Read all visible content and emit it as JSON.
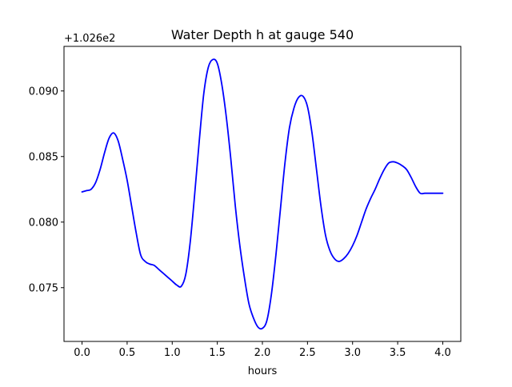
{
  "chart_data": {
    "type": "line",
    "title": "Water Depth h at gauge 540",
    "xlabel": "hours",
    "ylabel": "",
    "offset_label": "+1.026e2",
    "y_offset": 102.6,
    "xlim": [
      -0.2,
      4.2
    ],
    "ylim": [
      0.0709,
      0.0934
    ],
    "grid": false,
    "x_ticks": [
      0.0,
      0.5,
      1.0,
      1.5,
      2.0,
      2.5,
      3.0,
      3.5,
      4.0
    ],
    "x_tick_labels": [
      "0.0",
      "0.5",
      "1.0",
      "1.5",
      "2.0",
      "2.5",
      "3.0",
      "3.5",
      "4.0"
    ],
    "y_ticks": [
      0.075,
      0.08,
      0.085,
      0.09
    ],
    "y_tick_labels": [
      "0.075",
      "0.080",
      "0.085",
      "0.090"
    ],
    "series": [
      {
        "color": "#0000ff",
        "x": [
          0.0,
          0.05,
          0.1,
          0.15,
          0.2,
          0.25,
          0.3,
          0.35,
          0.4,
          0.45,
          0.5,
          0.55,
          0.6,
          0.65,
          0.7,
          0.75,
          0.8,
          0.85,
          0.9,
          0.95,
          1.0,
          1.05,
          1.1,
          1.15,
          1.2,
          1.25,
          1.3,
          1.35,
          1.4,
          1.45,
          1.5,
          1.55,
          1.6,
          1.65,
          1.7,
          1.75,
          1.8,
          1.85,
          1.9,
          1.95,
          2.0,
          2.05,
          2.1,
          2.15,
          2.2,
          2.25,
          2.3,
          2.35,
          2.4,
          2.45,
          2.5,
          2.55,
          2.6,
          2.65,
          2.7,
          2.75,
          2.8,
          2.85,
          2.9,
          2.95,
          3.0,
          3.05,
          3.1,
          3.15,
          3.2,
          3.25,
          3.3,
          3.35,
          3.4,
          3.45,
          3.5,
          3.55,
          3.6,
          3.65,
          3.7,
          3.75,
          3.8,
          3.85,
          3.9,
          3.95,
          4.0
        ],
        "y": [
          0.0823,
          0.0824,
          0.0825,
          0.083,
          0.084,
          0.0853,
          0.0864,
          0.0868,
          0.0862,
          0.0848,
          0.0832,
          0.0812,
          0.0792,
          0.0775,
          0.077,
          0.0768,
          0.0767,
          0.0764,
          0.0761,
          0.0758,
          0.0755,
          0.0752,
          0.0751,
          0.076,
          0.0785,
          0.0822,
          0.0862,
          0.0898,
          0.0918,
          0.0924,
          0.0921,
          0.0905,
          0.088,
          0.0848,
          0.0812,
          0.0782,
          0.0758,
          0.0738,
          0.0727,
          0.072,
          0.0719,
          0.0725,
          0.0745,
          0.0775,
          0.081,
          0.0845,
          0.0872,
          0.0887,
          0.0895,
          0.0896,
          0.0888,
          0.0868,
          0.084,
          0.0812,
          0.079,
          0.0778,
          0.0772,
          0.077,
          0.0772,
          0.0776,
          0.0782,
          0.079,
          0.08,
          0.081,
          0.0818,
          0.0825,
          0.0833,
          0.084,
          0.0845,
          0.0846,
          0.0845,
          0.0843,
          0.084,
          0.0834,
          0.0827,
          0.0822,
          0.0822,
          0.0822,
          0.0822,
          0.0822,
          0.0822
        ]
      }
    ]
  }
}
